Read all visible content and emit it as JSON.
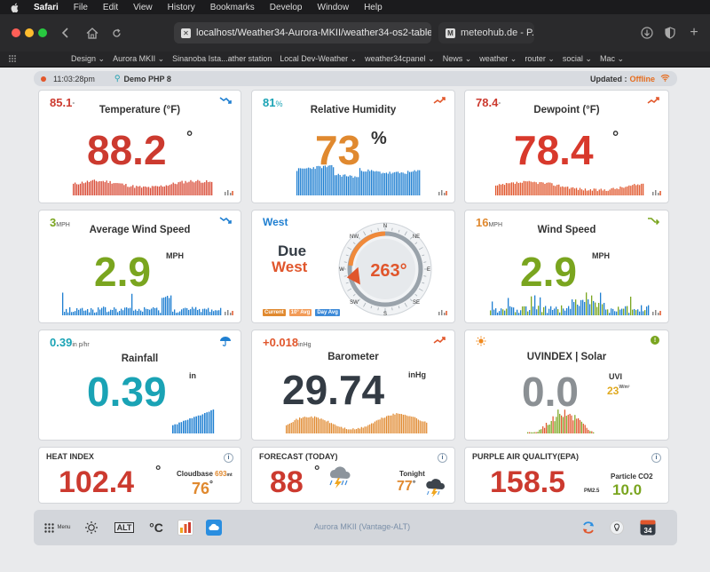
{
  "menubar": {
    "app": "Safari",
    "items": [
      "File",
      "Edit",
      "View",
      "History",
      "Bookmarks",
      "Develop",
      "Window",
      "Help"
    ]
  },
  "tabs": [
    {
      "label": "localhost/Weather34-Aurora-MKII/weather34-os2-tablet.p"
    },
    {
      "label": "meteohub.de - P..."
    }
  ],
  "bookmarks": [
    "Design ⌄",
    "Aurora MKII ⌄",
    "Sinanoba Ista...ather station",
    "Local Dev-Weather ⌄",
    "weather34cpanel ⌄",
    "News ⌄",
    "weather ⌄",
    "router ⌄",
    " social ⌄",
    " Mac ⌄"
  ],
  "status": {
    "time": "11:03:28pm",
    "station": "Demo PHP 8",
    "updated_label": "Updated :",
    "updated_value": "Offline"
  },
  "cards": {
    "temperature": {
      "top": "85.1",
      "top_unit": "°",
      "title": "Temperature (°F)",
      "value": "88.2",
      "unit": "°"
    },
    "humidity": {
      "top": "81",
      "top_unit": "%",
      "title": "Relative Humidity",
      "value": "73",
      "unit": "%"
    },
    "dewpoint": {
      "top": "78.4",
      "top_unit": "°",
      "title": "Dewpoint (°F)",
      "value": "78.4",
      "unit": "°"
    },
    "avg_wind": {
      "top": "3",
      "top_unit": "MPH",
      "title": "Average Wind Speed",
      "value": "2.9",
      "unit": "MPH"
    },
    "direction": {
      "top": "West",
      "line1": "Due",
      "line2": "West",
      "degrees": "263°",
      "legend": [
        "Current",
        "10° Avg",
        "Day Avg"
      ],
      "compass": [
        "N",
        "NE",
        "E",
        "SE",
        "S",
        "SW",
        "W",
        "NW"
      ]
    },
    "wind": {
      "top": "16",
      "top_unit": "MPH",
      "title": "Wind Speed",
      "value": "2.9",
      "unit": "MPH"
    },
    "rainfall": {
      "top": "0.39",
      "top_unit": "in p/hr",
      "title": "Rainfall",
      "value": "0.39",
      "unit": "in"
    },
    "barometer": {
      "top": "+0.018",
      "top_unit": "inHg",
      "title": "Barometer",
      "value": "29.74",
      "unit": "inHg"
    },
    "uv": {
      "title": "UVINDEX | Solar",
      "value": "0.0",
      "unit": "UVI",
      "solar": "23",
      "solar_unit": "W/m²"
    },
    "heat": {
      "title": "HEAT INDEX",
      "value": "102.4",
      "unit": "°",
      "cloudbase_label": "Cloudbase",
      "cloudbase_value": "693",
      "cloudbase_unit": "mt",
      "sub": "76",
      "sub_unit": "°"
    },
    "forecast": {
      "title": "FORECAST (TODAY)",
      "value": "88",
      "unit": "°",
      "tonight_label": "Tonight",
      "tonight_value": "77",
      "tonight_unit": "°"
    },
    "air": {
      "title": "PURPLE AIR QUALITY(EPA)",
      "value": "158.5",
      "unit": "PM2.5",
      "co2_label": "Particle CO2",
      "co2_value": "10.0"
    }
  },
  "footer": {
    "menu": "Menu",
    "alt": "ALT",
    "celsius": "°C",
    "center": "Aurora MKII (Vantage-ALT)",
    "day": "34"
  },
  "colors": {
    "red": "#cc3a2f",
    "blue": "#1f7fd1",
    "orange": "#e0892f",
    "green": "#7aa51f",
    "teal": "#1aa3b5",
    "dark": "#333b44",
    "gray": "#8b9094"
  }
}
